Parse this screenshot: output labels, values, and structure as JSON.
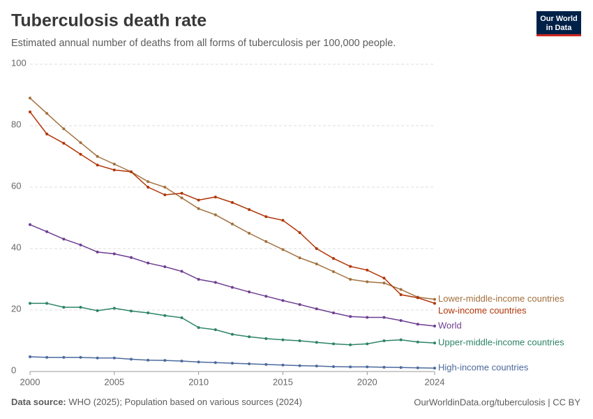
{
  "chart_data": {
    "type": "line",
    "title": "Tuberculosis death rate",
    "subtitle": "Estimated annual number of deaths from all forms of tuberculosis per 100,000 people.",
    "x": [
      2000,
      2001,
      2002,
      2003,
      2004,
      2005,
      2006,
      2007,
      2008,
      2009,
      2010,
      2011,
      2012,
      2013,
      2014,
      2015,
      2016,
      2017,
      2018,
      2019,
      2020,
      2021,
      2022,
      2023,
      2024
    ],
    "xlim": [
      2000,
      2024
    ],
    "xticks": [
      2000,
      2005,
      2010,
      2015,
      2020,
      2024
    ],
    "ylim": [
      0,
      100
    ],
    "yticks": [
      0,
      20,
      40,
      60,
      80,
      100
    ],
    "grid": true,
    "series": [
      {
        "name": "Lower-middle-income countries",
        "color": "#a2703e",
        "values": [
          89,
          84,
          79,
          74.5,
          70,
          67.5,
          65,
          61.8,
          60,
          56.5,
          53,
          51,
          48,
          45,
          42.3,
          39.7,
          37,
          35,
          32.5,
          30,
          29.2,
          28.8,
          26.7,
          24.2,
          23.5
        ]
      },
      {
        "name": "Low-income countries",
        "color": "#b13507",
        "values": [
          84.5,
          77.3,
          74.3,
          70.7,
          67.2,
          65.6,
          65,
          60,
          57.5,
          58,
          55.8,
          56.8,
          55,
          52.7,
          50.4,
          49.2,
          45.2,
          40,
          36.8,
          34.2,
          33,
          30.4,
          25,
          24,
          22.2
        ]
      },
      {
        "name": "World",
        "color": "#6d3e91",
        "values": [
          47.8,
          45.5,
          43.1,
          41.2,
          38.9,
          38.3,
          37.1,
          35.3,
          34.1,
          32.6,
          30,
          29,
          27.4,
          25.9,
          24.5,
          23.1,
          21.8,
          20.4,
          19.1,
          17.9,
          17.6,
          17.6,
          16.6,
          15.4,
          14.8
        ]
      },
      {
        "name": "Upper-middle-income countries",
        "color": "#2c8465",
        "values": [
          22.2,
          22.2,
          20.9,
          20.9,
          19.8,
          20.6,
          19.7,
          19.1,
          18.2,
          17.5,
          14.3,
          13.6,
          12.1,
          11.3,
          10.7,
          10.3,
          10,
          9.5,
          9,
          8.7,
          9,
          10,
          10.3,
          9.6,
          9.3
        ]
      },
      {
        "name": "High-income countries",
        "color": "#4c6a9c",
        "values": [
          4.8,
          4.6,
          4.6,
          4.6,
          4.4,
          4.4,
          4,
          3.7,
          3.6,
          3.4,
          3.1,
          2.9,
          2.7,
          2.5,
          2.3,
          2.1,
          1.9,
          1.8,
          1.6,
          1.5,
          1.5,
          1.4,
          1.3,
          1.2,
          1.1
        ]
      }
    ]
  },
  "logo": [
    "Our World",
    "in Data"
  ],
  "source_label": "Data source:",
  "source": "WHO (2025); Population based on various sources (2024)",
  "url": "OurWorldinData.org/tuberculosis | CC BY"
}
